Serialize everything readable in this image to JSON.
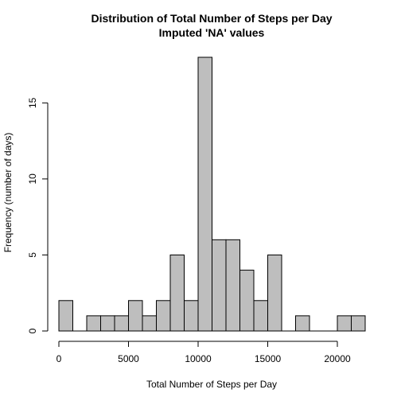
{
  "chart_data": {
    "type": "bar",
    "title": "Distribution of Total Number of Steps per Day",
    "subtitle": "Imputed 'NA' values",
    "xlabel": "Total Number of Steps per Day",
    "ylabel": "Frequency (number of days)",
    "bin_width": 1000,
    "bins": [
      {
        "start": 0,
        "end": 1000,
        "count": 2
      },
      {
        "start": 1000,
        "end": 2000,
        "count": 0
      },
      {
        "start": 2000,
        "end": 3000,
        "count": 1
      },
      {
        "start": 3000,
        "end": 4000,
        "count": 1
      },
      {
        "start": 4000,
        "end": 5000,
        "count": 1
      },
      {
        "start": 5000,
        "end": 6000,
        "count": 2
      },
      {
        "start": 6000,
        "end": 7000,
        "count": 1
      },
      {
        "start": 7000,
        "end": 8000,
        "count": 2
      },
      {
        "start": 8000,
        "end": 9000,
        "count": 5
      },
      {
        "start": 9000,
        "end": 10000,
        "count": 2
      },
      {
        "start": 10000,
        "end": 11000,
        "count": 18
      },
      {
        "start": 11000,
        "end": 12000,
        "count": 6
      },
      {
        "start": 12000,
        "end": 13000,
        "count": 6
      },
      {
        "start": 13000,
        "end": 14000,
        "count": 4
      },
      {
        "start": 14000,
        "end": 15000,
        "count": 2
      },
      {
        "start": 15000,
        "end": 16000,
        "count": 5
      },
      {
        "start": 16000,
        "end": 17000,
        "count": 0
      },
      {
        "start": 17000,
        "end": 18000,
        "count": 1
      },
      {
        "start": 18000,
        "end": 19000,
        "count": 0
      },
      {
        "start": 19000,
        "end": 20000,
        "count": 0
      },
      {
        "start": 20000,
        "end": 21000,
        "count": 1
      },
      {
        "start": 21000,
        "end": 22000,
        "count": 1
      }
    ],
    "xlim": [
      0,
      22000
    ],
    "ylim": [
      0,
      18
    ],
    "xticks": [
      0,
      5000,
      10000,
      15000,
      20000
    ],
    "yticks": [
      0,
      5,
      10,
      15
    ],
    "bar_color": "#bebebe",
    "grid": false,
    "legend": "none"
  }
}
